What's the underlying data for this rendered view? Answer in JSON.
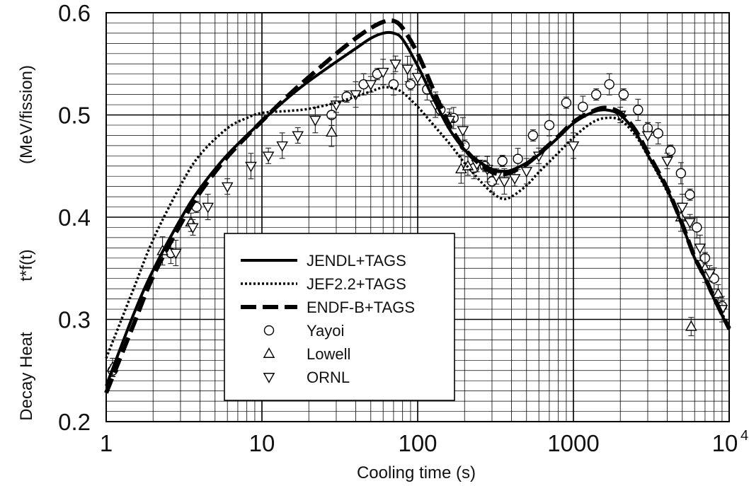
{
  "chart_data": {
    "type": "line",
    "xlabel": "Cooling time (s)",
    "ylabel_parts": [
      "Decay Heat",
      "t*f(t)",
      "(MeV/fission)"
    ],
    "x_scale": "log",
    "xlim": [
      1,
      10000
    ],
    "ylim": [
      0.2,
      0.6
    ],
    "grid": true,
    "legend_position": "lower-center",
    "x_ticks": [
      {
        "value": 1,
        "label": "1"
      },
      {
        "value": 10,
        "label": "10"
      },
      {
        "value": 100,
        "label": "100"
      },
      {
        "value": 1000,
        "label": "1000"
      },
      {
        "value": 10000,
        "label": "10",
        "exponent": "4"
      }
    ],
    "y_ticks": [
      {
        "value": 0.2,
        "label": "0.2"
      },
      {
        "value": 0.3,
        "label": "0.3"
      },
      {
        "value": 0.4,
        "label": "0.4"
      },
      {
        "value": 0.5,
        "label": "0.5"
      },
      {
        "value": 0.6,
        "label": "0.6"
      }
    ],
    "series": [
      {
        "name": "JENDL+TAGS",
        "kind": "line",
        "style": "solid",
        "color": "#000000",
        "x": [
          1,
          1.5,
          2,
          3,
          4,
          6,
          10,
          15,
          20,
          30,
          40,
          50,
          60,
          70,
          80,
          100,
          130,
          160,
          200,
          250,
          300,
          350,
          400,
          500,
          600,
          800,
          1000,
          1300,
          1600,
          2000,
          2500,
          3000,
          4000,
          5000,
          6000,
          7000,
          8000,
          10000
        ],
        "y": [
          0.235,
          0.305,
          0.348,
          0.398,
          0.428,
          0.461,
          0.494,
          0.518,
          0.533,
          0.552,
          0.565,
          0.575,
          0.58,
          0.58,
          0.574,
          0.548,
          0.512,
          0.486,
          0.466,
          0.454,
          0.447,
          0.445,
          0.446,
          0.453,
          0.461,
          0.478,
          0.492,
          0.502,
          0.505,
          0.5,
          0.483,
          0.461,
          0.427,
          0.392,
          0.36,
          0.34,
          0.32,
          0.29
        ]
      },
      {
        "name": "JEF2.2+TAGS",
        "kind": "line",
        "style": "dotted",
        "color": "#000000",
        "x": [
          1,
          1.5,
          2,
          3,
          4,
          6,
          8,
          10,
          15,
          20,
          30,
          40,
          50,
          60,
          70,
          80,
          100,
          130,
          160,
          200,
          250,
          300,
          350,
          400,
          500,
          600,
          800,
          1000,
          1300,
          1600,
          2000,
          2500,
          3000,
          4000,
          5000,
          6000,
          7000,
          8000,
          10000
        ],
        "y": [
          0.262,
          0.33,
          0.378,
          0.431,
          0.461,
          0.487,
          0.497,
          0.502,
          0.504,
          0.506,
          0.512,
          0.518,
          0.523,
          0.527,
          0.526,
          0.522,
          0.508,
          0.488,
          0.472,
          0.453,
          0.436,
          0.424,
          0.418,
          0.42,
          0.431,
          0.444,
          0.463,
          0.478,
          0.492,
          0.497,
          0.495,
          0.48,
          0.46,
          0.425,
          0.392,
          0.36,
          0.34,
          0.32,
          0.293
        ]
      },
      {
        "name": "ENDF-B+TAGS",
        "kind": "line",
        "style": "dashed",
        "color": "#000000",
        "x": [
          1,
          1.5,
          2,
          3,
          4,
          6,
          10,
          15,
          20,
          30,
          40,
          50,
          60,
          70,
          80,
          100,
          130,
          160,
          200,
          250,
          300,
          350,
          400,
          500,
          600,
          800,
          1000,
          1300,
          1600,
          2000,
          2500,
          3000,
          4000,
          5000,
          6000,
          7000,
          8000,
          10000
        ],
        "y": [
          0.228,
          0.295,
          0.342,
          0.393,
          0.424,
          0.459,
          0.494,
          0.52,
          0.537,
          0.56,
          0.575,
          0.585,
          0.591,
          0.592,
          0.585,
          0.56,
          0.52,
          0.49,
          0.467,
          0.452,
          0.444,
          0.442,
          0.444,
          0.452,
          0.462,
          0.479,
          0.493,
          0.503,
          0.507,
          0.502,
          0.485,
          0.463,
          0.428,
          0.393,
          0.361,
          0.341,
          0.321,
          0.291
        ]
      },
      {
        "name": "Yayoi",
        "kind": "marker",
        "marker": "circle",
        "x": [
          1.1,
          2.6,
          3.8,
          28,
          35,
          45,
          55,
          70,
          90,
          115,
          140,
          170,
          200,
          230,
          270,
          300,
          350,
          440,
          550,
          700,
          900,
          1150,
          1400,
          1700,
          2100,
          2600,
          3000,
          3500,
          4200,
          4900,
          5600,
          6200,
          7000,
          8000,
          9000
        ],
        "y": [
          0.25,
          0.365,
          0.41,
          0.5,
          0.518,
          0.53,
          0.54,
          0.53,
          0.53,
          0.525,
          0.505,
          0.497,
          0.47,
          0.448,
          0.45,
          0.435,
          0.455,
          0.457,
          0.48,
          0.49,
          0.512,
          0.508,
          0.52,
          0.53,
          0.52,
          0.505,
          0.487,
          0.482,
          0.465,
          0.443,
          0.422,
          0.39,
          0.36,
          0.34,
          0.313
        ]
      },
      {
        "name": "Lowell",
        "kind": "marker",
        "marker": "triangle-up",
        "x": [
          1.1,
          2.3,
          3.5,
          28,
          160,
          190,
          210,
          4900,
          5700,
          7000,
          8500
        ],
        "y": [
          0.253,
          0.367,
          0.395,
          0.483,
          0.497,
          0.447,
          0.45,
          0.4,
          0.293,
          0.35,
          0.325
        ]
      },
      {
        "name": "ORNL",
        "kind": "marker",
        "marker": "triangle-down",
        "x": [
          2.8,
          3.6,
          4.5,
          6,
          8.5,
          11,
          13.5,
          17,
          22,
          30,
          40,
          50,
          60,
          72,
          86,
          100,
          130,
          160,
          195,
          240,
          280,
          320,
          360,
          420,
          500,
          600,
          1000,
          2000,
          3000,
          4000,
          5000,
          5600,
          6500,
          7500,
          9000
        ],
        "y": [
          0.365,
          0.39,
          0.41,
          0.43,
          0.45,
          0.46,
          0.47,
          0.48,
          0.495,
          0.51,
          0.52,
          0.53,
          0.542,
          0.55,
          0.545,
          0.537,
          0.51,
          0.495,
          0.485,
          0.452,
          0.447,
          0.44,
          0.435,
          0.438,
          0.445,
          0.46,
          0.47,
          0.5,
          0.48,
          0.455,
          0.41,
          0.395,
          0.37,
          0.345,
          0.31
        ]
      }
    ]
  }
}
